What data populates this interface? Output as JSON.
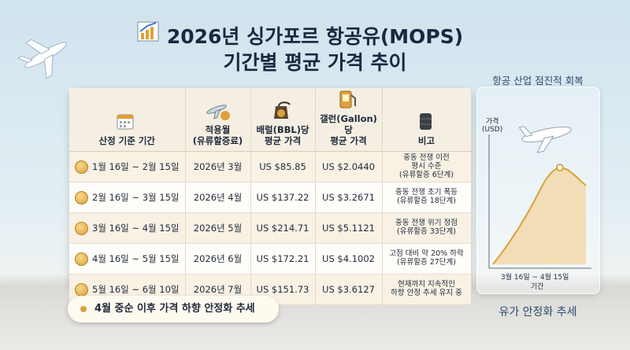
{
  "header": {
    "title_line1": "2026년 싱가포르 항공유(MOPS)",
    "title_line2": "기간별 평균 가격 추이"
  },
  "table": {
    "columns": [
      "산정 기준 기간",
      "적용월\n(유류할증료)",
      "배럴(BBL)당\n평균 가격",
      "갤런(Gallon)당\n평균 가격",
      "비고"
    ],
    "rows": [
      [
        "1월 16일 ~ 2월 15일",
        "2026년 3월",
        "US $85.85",
        "US $2.0440",
        "중동 전쟁 이전\n평시 수준\n(유류할증 6단계)"
      ],
      [
        "2월 16일 ~ 3월 15일",
        "2026년 4월",
        "US $137.22",
        "US $3.2671",
        "중동 전쟁 초기 폭등\n(유류할증 18단계)"
      ],
      [
        "3월 16일 ~ 4월 15일",
        "2026년 5월",
        "US $214.71",
        "US $5.1121",
        "중동 전쟁 위기 정점\n(유류할증 33단계)"
      ],
      [
        "4월 16일 ~ 5월 15일",
        "2026년 6월",
        "US $172.21",
        "US $4.1002",
        "고점 대비 약 20% 하락\n(유류할증 27단계)"
      ],
      [
        "5월 16일 ~ 6월 10일",
        "2026년 7월",
        "US $151.73",
        "US $3.6127",
        "현재까지 지속적인\n하향 안정 추세 유지 중"
      ]
    ]
  },
  "footer_note": "4월 중순 이후 가격 하향 안정화 추세",
  "side_panel": {
    "caption_top": "항공 산업 점진적 회복",
    "y_label": "가격\n(USD)",
    "x_range_label": "3월 16일 ~ 4월 15일",
    "x_label": "기간",
    "caption_bottom": "유가 안정화 추세"
  }
}
